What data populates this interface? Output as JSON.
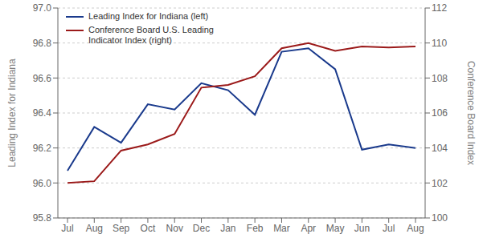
{
  "chart_data": {
    "type": "line",
    "categories": [
      "Jul",
      "Aug",
      "Sep",
      "Oct",
      "Nov",
      "Dec",
      "Jan",
      "Feb",
      "Mar",
      "Apr",
      "May",
      "Jun",
      "Jul",
      "Aug"
    ],
    "series": [
      {
        "name": "Leading Index for Indiana (left)",
        "color": "#1a3a8c",
        "values": [
          96.07,
          96.32,
          96.23,
          96.45,
          96.42,
          96.57,
          96.53,
          96.39,
          96.75,
          96.77,
          96.65,
          96.19,
          96.22,
          96.2
        ]
      },
      {
        "name": "Conference Board U.S. Leading\nIndicator Index (right)",
        "color": "#9b1a1a",
        "axis": "y2",
        "values": [
          102.0,
          102.1,
          103.85,
          104.2,
          104.8,
          107.45,
          107.6,
          108.1,
          109.7,
          110.0,
          109.55,
          109.8,
          109.75,
          109.8
        ]
      }
    ],
    "ylabel": "Leading Index for Indiana",
    "y2label": "Conference Board Index",
    "ylim": [
      95.8,
      97.0
    ],
    "yticks": [
      95.8,
      {
        "value": 96,
        "label": "96.0"
      },
      96.2,
      96.4,
      96.6,
      96.8,
      {
        "value": 97,
        "label": "97.0"
      }
    ],
    "y2lim": [
      100,
      112
    ],
    "y2ticks": [
      100,
      102,
      104,
      106,
      108,
      110,
      112
    ],
    "grid": true,
    "legend": "upper left"
  }
}
